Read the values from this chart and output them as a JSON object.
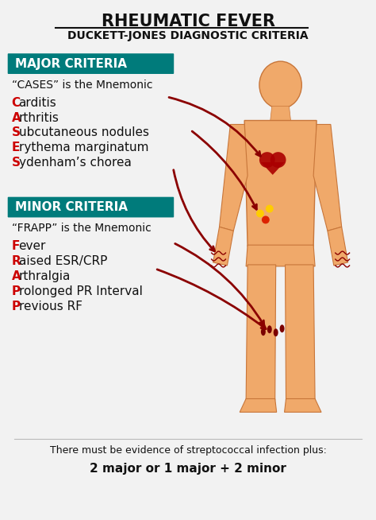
{
  "title_line1": "RHEUMATIC FEVER",
  "title_line2": "DUCKETT-JONES DIAGNOSTIC CRITERIA",
  "bg_color": "#f2f2f2",
  "title_color": "#111111",
  "major_label": "MAJOR CRITERIA",
  "major_bg": "#007b7b",
  "major_text_color": "#ffffff",
  "major_mnemonic": "“CASES” is the Mnemonic",
  "cases_items": [
    [
      "C",
      "arditis"
    ],
    [
      "A",
      "rthritis"
    ],
    [
      "S",
      "ubcutaneous nodules"
    ],
    [
      "E",
      "rythema marginatum"
    ],
    [
      "S",
      "ydenham’s chorea"
    ]
  ],
  "minor_label": "MINOR CRITERIA",
  "minor_bg": "#007b7b",
  "minor_text_color": "#ffffff",
  "minor_mnemonic": "“FRAPP” is the Mnemonic",
  "frapp_items": [
    [
      "F",
      "ever"
    ],
    [
      "R",
      "aised ESR/CRP"
    ],
    [
      "A",
      "rthralgia"
    ],
    [
      "P",
      "rolonged PR Interval"
    ],
    [
      "P",
      "revious RF"
    ]
  ],
  "red_letter_color": "#cc0000",
  "black_letter_color": "#111111",
  "arrow_color": "#8b0000",
  "footer_line1": "There must be evidence of streptococcal infection plus:",
  "footer_line2": "2 major or 1 major + 2 minor",
  "body_fill": "#f0a96a",
  "body_outline": "#c8763a",
  "heart_color": "#aa0000",
  "spot_colors": [
    "#ffcc00",
    "#ffcc00",
    "#dd2200"
  ],
  "knee_color": "#7b0000"
}
